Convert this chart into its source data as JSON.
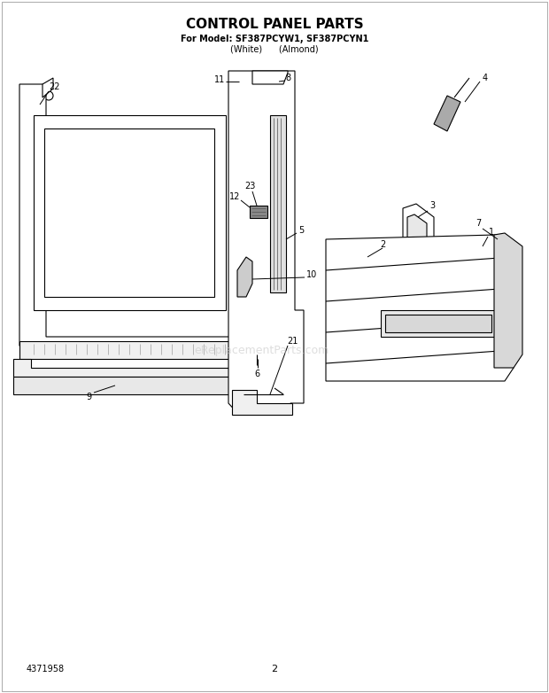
{
  "title": "CONTROL PANEL PARTS",
  "subtitle_line1": "For Model: SF387PCYW1, SF387PCYN1",
  "subtitle_line2": "(White)      (Almond)",
  "part_number": "4371958",
  "page_number": "2",
  "watermark": "eReplacementParts.com",
  "bg_color": "#ffffff",
  "lc": "#000000",
  "lw": 0.8,
  "fig_w": 6.2,
  "fig_h": 7.82,
  "dpi": 100,
  "title_fs": 11,
  "sub1_fs": 7,
  "sub2_fs": 7,
  "label_fs": 7,
  "watermark_color": "#c8c8c8",
  "watermark_alpha": 0.6,
  "gray_fill": "#d0d0d0",
  "light_fill": "#f0f0f0",
  "white_fill": "#ffffff"
}
